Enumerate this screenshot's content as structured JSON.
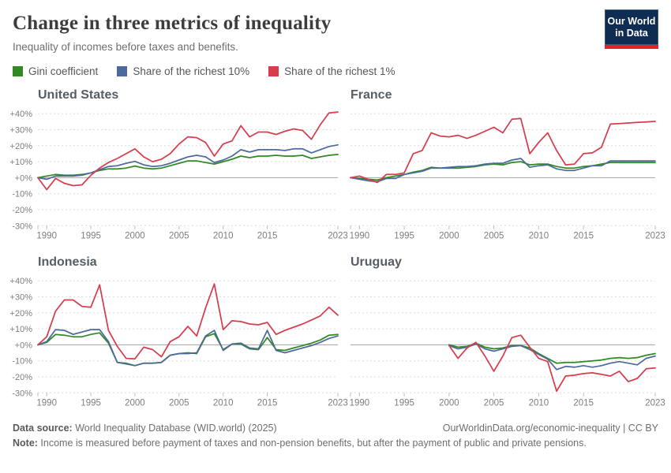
{
  "header": {
    "title": "Change in three metrics of inequality",
    "subtitle": "Inequality of incomes before taxes and benefits."
  },
  "logo": {
    "line1": "Our World",
    "line2": "in Data"
  },
  "legend": {
    "items": [
      {
        "label": "Gini coefficient",
        "color": "#318a21"
      },
      {
        "label": "Share of the richest 10%",
        "color": "#4c6a9c"
      },
      {
        "label": "Share of the richest 1%",
        "color": "#d63e4e"
      }
    ]
  },
  "style": {
    "grid_color": "#dcdcdc",
    "zero_line_color": "#a3a3a3",
    "tick_color": "#bdbdbd",
    "tick_label_color": "#7d7d7d"
  },
  "chart_data": [
    {
      "type": "line",
      "title": "United States",
      "x_start": 1989,
      "x_end": 2023,
      "x_ticks": [
        1990,
        1995,
        2000,
        2005,
        2010,
        2015,
        2023
      ],
      "y_ticks": [
        40,
        30,
        20,
        10,
        0,
        -10,
        -20,
        -30
      ],
      "y_tick_labels": [
        "+40%",
        "+30%",
        "+20%",
        "+10%",
        "+0%",
        "-10%",
        "-20%",
        "-30%"
      ],
      "y_axis_labels": true,
      "unit": "%",
      "series": [
        {
          "name": "Gini coefficient",
          "color": "#318a21",
          "values": [
            0,
            1,
            2,
            1.5,
            1.5,
            2,
            3,
            4.5,
            5.5,
            5.5,
            6,
            7.3,
            6,
            5.5,
            6,
            7.5,
            9,
            10.5,
            10.5,
            9.5,
            8.5,
            10,
            11.5,
            13.5,
            12.5,
            13.5,
            13.5,
            14,
            13.5,
            13.5,
            14,
            12,
            13,
            14,
            14.5
          ]
        },
        {
          "name": "Share of the richest 10%",
          "color": "#4c6a9c",
          "values": [
            0,
            -1,
            1,
            1,
            1,
            1.5,
            3,
            5,
            7,
            7.5,
            9,
            10.2,
            8,
            7,
            7.5,
            9,
            11,
            13,
            14,
            13,
            9.5,
            11,
            13.5,
            17.5,
            16,
            17.5,
            17.5,
            17.5,
            17,
            18,
            18,
            15.5,
            17.5,
            19.5,
            20.5
          ]
        },
        {
          "name": "Share of the richest 1%",
          "color": "#d63e4e",
          "values": [
            0,
            -7.5,
            -0.5,
            -3.5,
            -5,
            -4.5,
            1.5,
            6,
            9.5,
            12,
            15,
            18,
            13,
            10,
            11.5,
            15,
            21,
            25.5,
            25,
            22,
            13.5,
            21,
            23,
            32.5,
            25.5,
            28.5,
            28.5,
            27,
            29,
            30.5,
            29.5,
            24,
            33,
            40.5,
            41
          ]
        }
      ]
    },
    {
      "type": "line",
      "title": "France",
      "x_start": 1989,
      "x_end": 2023,
      "x_ticks": [
        1990,
        1995,
        2000,
        2005,
        2010,
        2015,
        2023
      ],
      "y_ticks": [
        40,
        30,
        20,
        10,
        0,
        -10,
        -20,
        -30
      ],
      "y_tick_labels": [
        "+40%",
        "+30%",
        "+20%",
        "+10%",
        "+0%",
        "-10%",
        "-20%",
        "-30%"
      ],
      "y_axis_labels": false,
      "unit": "%",
      "series": [
        {
          "name": "Gini coefficient",
          "color": "#318a21",
          "values": [
            0,
            -0.5,
            -1,
            -1.5,
            0,
            1,
            2,
            3.5,
            4.5,
            6.5,
            6,
            6,
            6,
            6.5,
            7,
            8,
            8.5,
            8,
            9.5,
            10,
            8,
            8.5,
            8.5,
            7,
            6,
            6,
            7,
            7.5,
            8.5,
            9.5,
            9.5,
            9.5,
            9.5,
            9.5,
            9.5
          ]
        },
        {
          "name": "Share of the richest 10%",
          "color": "#4c6a9c",
          "values": [
            0,
            -1,
            -2,
            -2.5,
            -0.5,
            -0.5,
            2,
            3,
            4,
            6,
            6,
            6.5,
            7,
            7,
            7.5,
            8.5,
            9,
            9,
            11,
            12,
            6.5,
            7.5,
            8,
            5.5,
            4.5,
            4.5,
            6,
            7.5,
            7.5,
            10.5,
            10.5,
            10.5,
            10.5,
            10.5,
            10.5
          ]
        },
        {
          "name": "Share of the richest 1%",
          "color": "#d63e4e",
          "values": [
            0,
            1,
            -1,
            -3,
            2,
            2,
            3,
            15,
            17,
            28,
            26,
            25.5,
            26.5,
            24.5,
            26.5,
            29,
            31.5,
            28,
            36.5,
            37,
            15,
            22,
            28,
            17,
            8,
            8.5,
            15,
            15.5,
            19,
            33.5,
            33.8,
            34.2,
            34.5,
            34.8,
            35.2
          ]
        }
      ]
    },
    {
      "type": "line",
      "title": "Indonesia",
      "x_start": 1989,
      "x_end": 2023,
      "x_ticks": [
        1990,
        1995,
        2000,
        2005,
        2010,
        2015,
        2023
      ],
      "y_ticks": [
        40,
        30,
        20,
        10,
        0,
        -10,
        -20,
        -30
      ],
      "y_tick_labels": [
        "+40%",
        "+30%",
        "+20%",
        "+10%",
        "+0%",
        "-10%",
        "-20%",
        "-30%"
      ],
      "y_axis_labels": true,
      "unit": "%",
      "series": [
        {
          "name": "Gini coefficient",
          "color": "#318a21",
          "values": [
            0,
            1.5,
            6.5,
            6,
            5,
            5,
            6.5,
            7.5,
            1,
            -11,
            -12,
            -13,
            -11.5,
            -11.5,
            -11,
            -6.5,
            -5.5,
            -5,
            -5.5,
            5,
            7,
            -3,
            0.5,
            0.5,
            -2.5,
            -3,
            4.5,
            -3,
            -3.5,
            -2,
            -0.5,
            1,
            3,
            6,
            6.5
          ]
        },
        {
          "name": "Share of the richest 10%",
          "color": "#4c6a9c",
          "values": [
            0,
            2,
            9.5,
            9,
            6.5,
            8,
            9.5,
            9.5,
            2,
            -11,
            -11.5,
            -13,
            -11.5,
            -11.5,
            -11,
            -6.5,
            -5.5,
            -5.5,
            -5,
            5.5,
            9,
            -3.5,
            0.5,
            1,
            -2,
            -2.5,
            9,
            -3.5,
            -5,
            -3.5,
            -2,
            -0.5,
            1.5,
            4,
            5.5
          ]
        },
        {
          "name": "Share of the richest 1%",
          "color": "#d63e4e",
          "values": [
            0,
            5,
            21,
            28,
            28,
            24,
            23.5,
            37.5,
            9,
            -1,
            -8.5,
            -8.8,
            -1.5,
            -3,
            -7.5,
            2,
            5,
            11.5,
            5.5,
            23,
            38,
            9.5,
            15,
            14.5,
            13,
            12.5,
            14,
            6.5,
            9,
            11,
            13,
            15.5,
            18,
            23.5,
            18.5
          ]
        }
      ]
    },
    {
      "type": "line",
      "title": "Uruguay",
      "x_start": 2000,
      "x_end": 2023,
      "x_ticks": [
        1990,
        1995,
        2000,
        2005,
        2010,
        2015,
        2023
      ],
      "y_ticks": [
        40,
        30,
        20,
        10,
        0,
        -10,
        -20,
        -30
      ],
      "y_tick_labels": [
        "+40%",
        "+30%",
        "+20%",
        "+10%",
        "+0%",
        "-10%",
        "-20%",
        "-30%"
      ],
      "y_axis_labels": false,
      "unit": "%",
      "series": [
        {
          "name": "Gini coefficient",
          "color": "#318a21",
          "values": [
            0,
            -1.5,
            -1,
            1,
            -1.5,
            -2.5,
            -2,
            -0.5,
            -0.5,
            -2,
            -5.5,
            -8.5,
            -11.5,
            -11,
            -11,
            -10.5,
            -10,
            -9.5,
            -8.5,
            -8,
            -8.5,
            -8,
            -6.5,
            -5.5
          ]
        },
        {
          "name": "Share of the richest 10%",
          "color": "#4c6a9c",
          "values": [
            -0.5,
            -2.5,
            -1.5,
            0.5,
            -2.5,
            -4,
            -2.5,
            -1,
            -0.5,
            -3,
            -6,
            -9,
            -15.5,
            -13.5,
            -14,
            -13,
            -14,
            -13,
            -11.5,
            -10.5,
            -11.5,
            -12.5,
            -8.5,
            -7
          ]
        },
        {
          "name": "Share of the richest 1%",
          "color": "#d63e4e",
          "values": [
            -0.5,
            -8.5,
            -2,
            1.5,
            -7,
            -16.5,
            -7,
            4.5,
            6,
            -1.5,
            -8.5,
            -10.5,
            -29,
            -19.5,
            -19,
            -18,
            -17.5,
            -18.5,
            -19.5,
            -16.5,
            -23,
            -21,
            -15,
            -14.5
          ]
        }
      ]
    }
  ],
  "footer": {
    "source_label": "Data source:",
    "source_text": " World Inequality Database (WID.world) (2025)",
    "link": "OurWorldinData.org/economic-inequality",
    "separator": " | ",
    "license": "CC BY",
    "note_label": "Note:",
    "note_text": " Income is measured before payment of taxes and non-pension benefits, but after the payment of public and private pensions."
  }
}
